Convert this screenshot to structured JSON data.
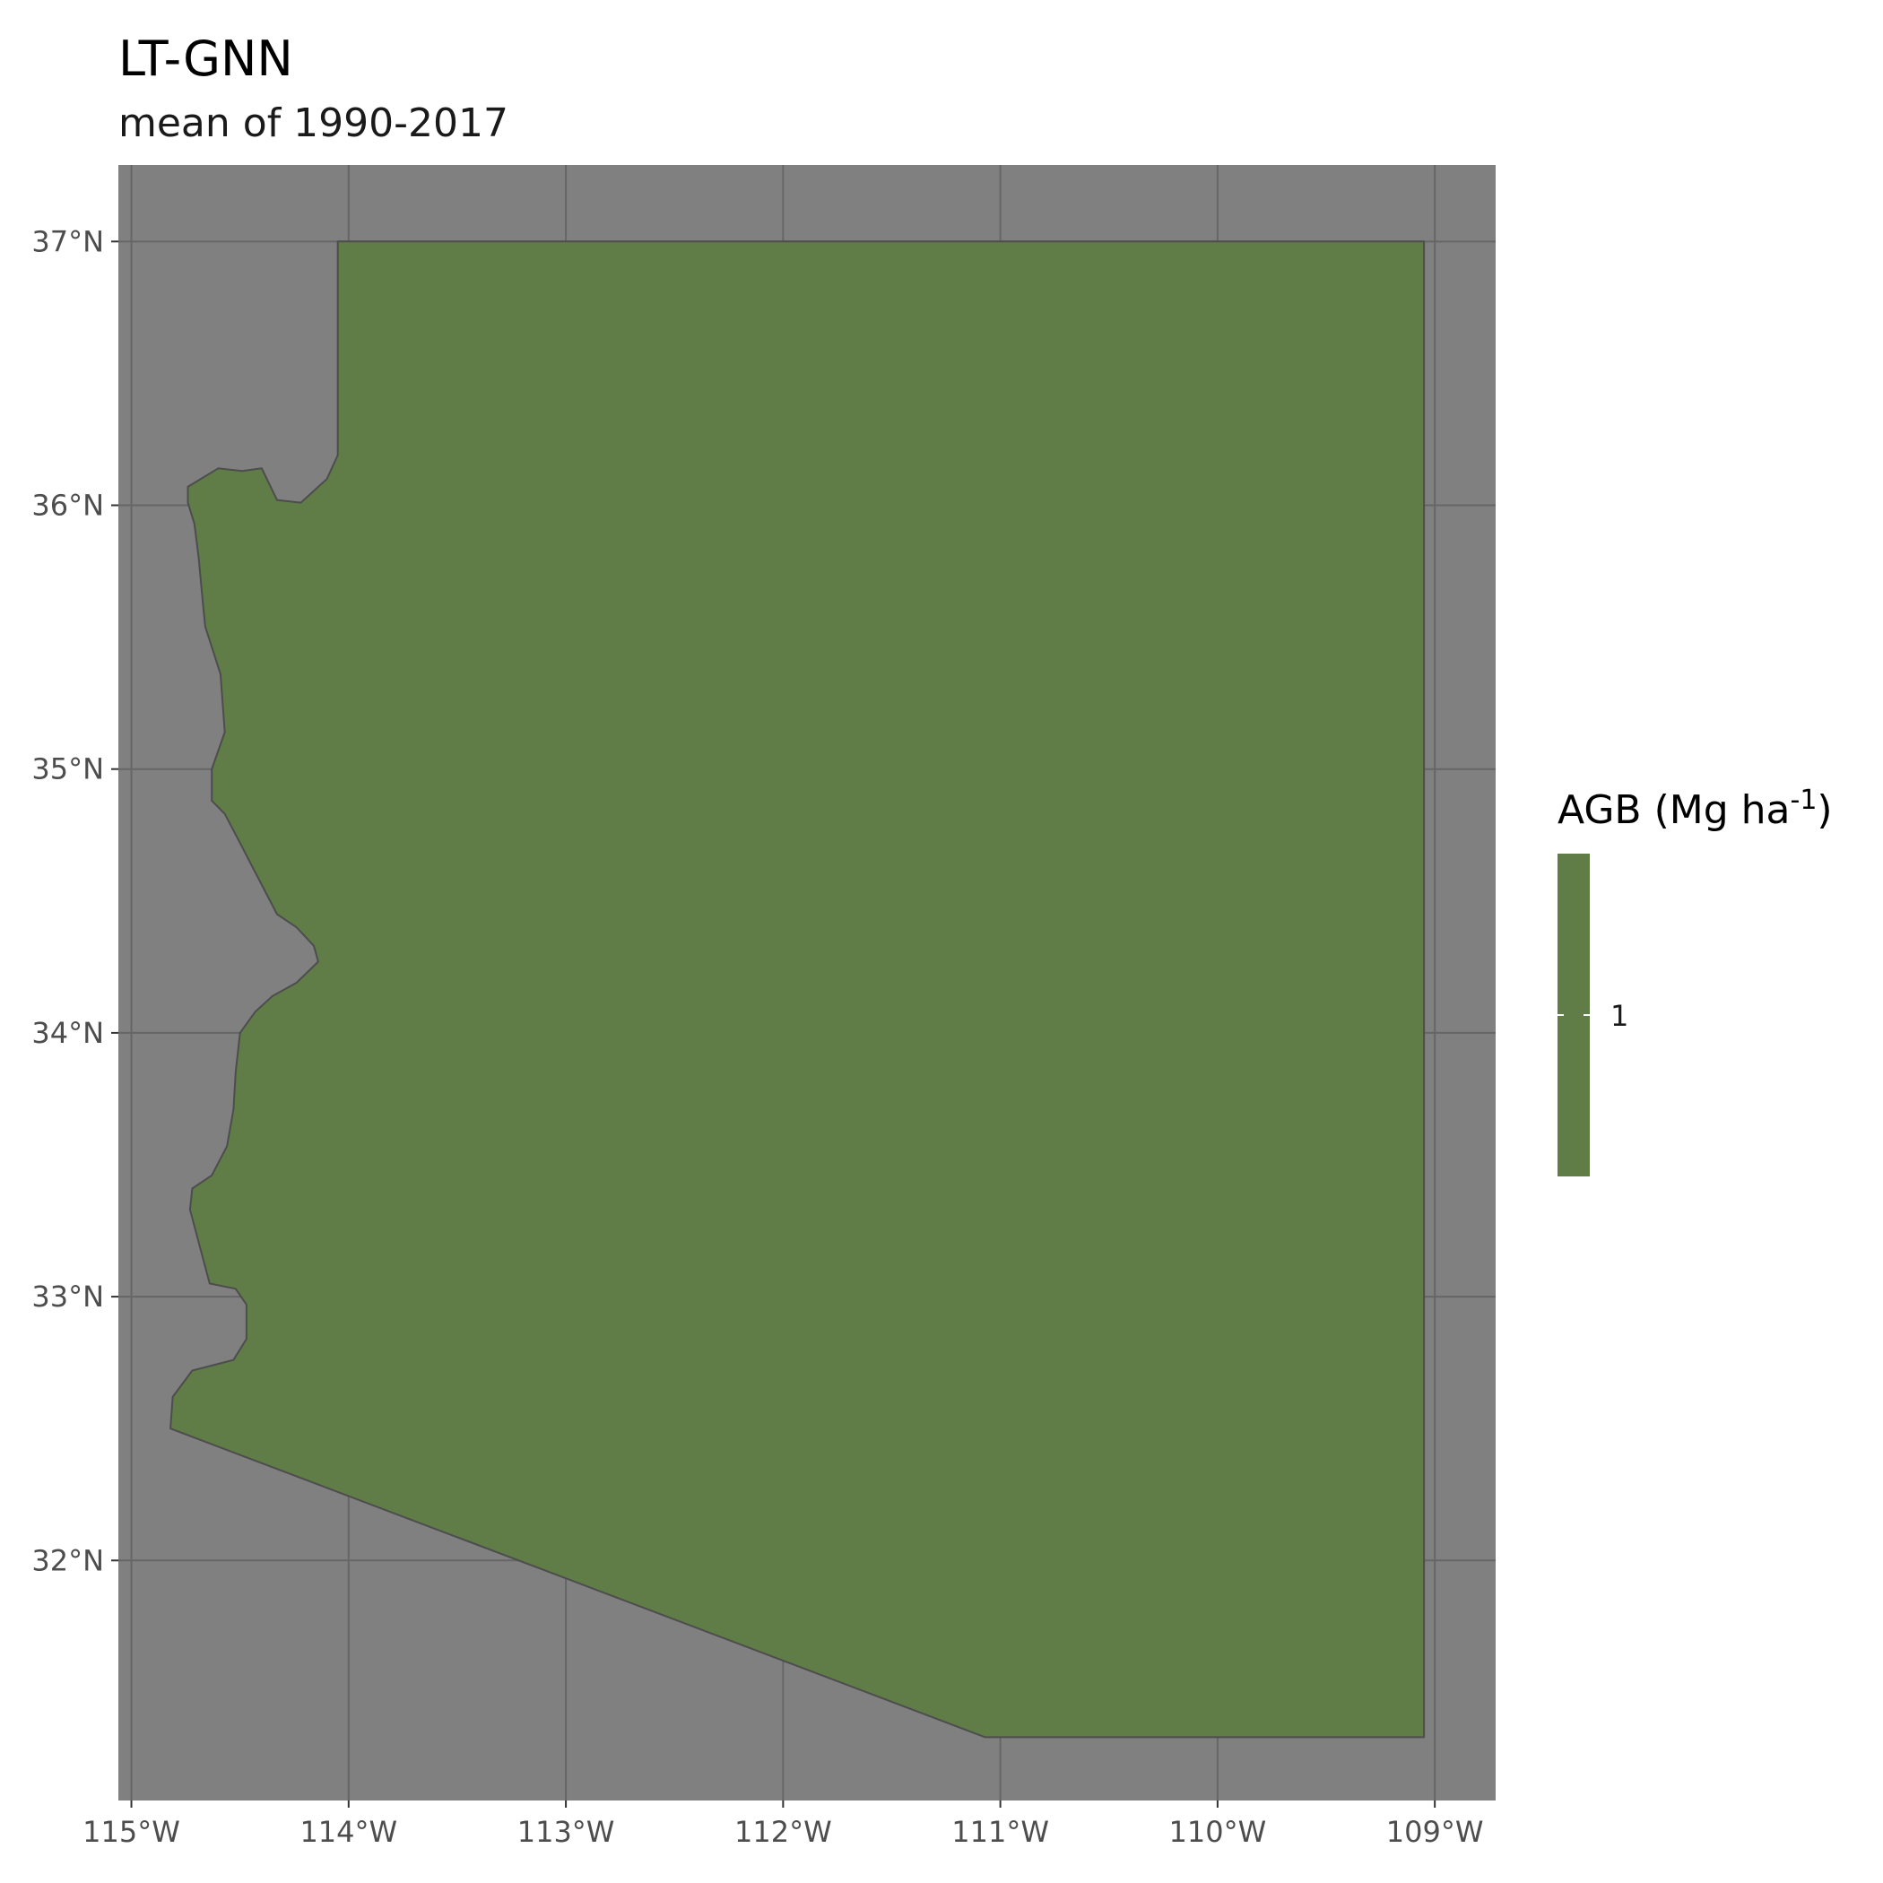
{
  "title": "LT-GNN",
  "subtitle": "mean of 1990-2017",
  "colors": {
    "panel_background": "#808080",
    "grid": "#666666",
    "state_fill": "#607d48",
    "state_border": "#4d4d4d",
    "legend_tick": "#ffffff"
  },
  "legend": {
    "title_main": "AGB (Mg ha",
    "title_sup": "-1",
    "title_end": ")",
    "labels": [
      "1"
    ]
  },
  "chart_data": {
    "type": "map",
    "region": "Arizona",
    "x_axis": {
      "range": [
        -115.06,
        -108.72
      ],
      "ticks": [
        {
          "value": -115,
          "label": "115°W"
        },
        {
          "value": -114,
          "label": "114°W"
        },
        {
          "value": -113,
          "label": "113°W"
        },
        {
          "value": -112,
          "label": "112°W"
        },
        {
          "value": -111,
          "label": "111°W"
        },
        {
          "value": -110,
          "label": "110°W"
        },
        {
          "value": -109,
          "label": "109°W"
        }
      ]
    },
    "y_axis": {
      "range": [
        31.09,
        37.29
      ],
      "ticks": [
        {
          "value": 32,
          "label": "32°N"
        },
        {
          "value": 33,
          "label": "33°N"
        },
        {
          "value": 34,
          "label": "34°N"
        },
        {
          "value": 35,
          "label": "35°N"
        },
        {
          "value": 36,
          "label": "36°N"
        },
        {
          "value": 37,
          "label": "37°N"
        }
      ]
    },
    "grid": true,
    "legend_position": "right",
    "fill_value": 1,
    "boundary": [
      [
        -114.05,
        37.0
      ],
      [
        -112.8,
        37.0
      ],
      [
        -110.5,
        37.0
      ],
      [
        -109.05,
        37.0
      ],
      [
        -109.05,
        31.33
      ],
      [
        -111.07,
        31.33
      ],
      [
        -114.82,
        32.5
      ],
      [
        -114.81,
        32.62
      ],
      [
        -114.72,
        32.72
      ],
      [
        -114.53,
        32.76
      ],
      [
        -114.47,
        32.84
      ],
      [
        -114.47,
        32.97
      ],
      [
        -114.52,
        33.03
      ],
      [
        -114.64,
        33.05
      ],
      [
        -114.73,
        33.33
      ],
      [
        -114.72,
        33.41
      ],
      [
        -114.63,
        33.46
      ],
      [
        -114.56,
        33.57
      ],
      [
        -114.53,
        33.71
      ],
      [
        -114.52,
        33.85
      ],
      [
        -114.5,
        34.0
      ],
      [
        -114.43,
        34.08
      ],
      [
        -114.35,
        34.14
      ],
      [
        -114.24,
        34.19
      ],
      [
        -114.14,
        34.27
      ],
      [
        -114.16,
        34.33
      ],
      [
        -114.24,
        34.4
      ],
      [
        -114.33,
        34.45
      ],
      [
        -114.38,
        34.53
      ],
      [
        -114.45,
        34.64
      ],
      [
        -114.5,
        34.72
      ],
      [
        -114.57,
        34.83
      ],
      [
        -114.63,
        34.88
      ],
      [
        -114.63,
        35.0
      ],
      [
        -114.57,
        35.14
      ],
      [
        -114.59,
        35.36
      ],
      [
        -114.66,
        35.54
      ],
      [
        -114.67,
        35.62
      ],
      [
        -114.69,
        35.8
      ],
      [
        -114.71,
        35.93
      ],
      [
        -114.74,
        36.01
      ],
      [
        -114.74,
        36.07
      ],
      [
        -114.6,
        36.14
      ],
      [
        -114.49,
        36.13
      ],
      [
        -114.4,
        36.14
      ],
      [
        -114.33,
        36.02
      ],
      [
        -114.22,
        36.01
      ],
      [
        -114.1,
        36.1
      ],
      [
        -114.05,
        36.19
      ],
      [
        -114.05,
        37.0
      ]
    ]
  }
}
